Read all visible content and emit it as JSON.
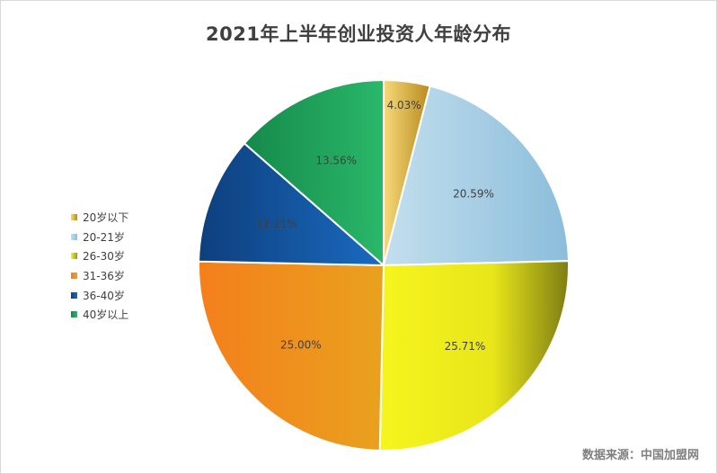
{
  "chart_data": {
    "type": "pie",
    "title": "2021年上半年创业投资人年龄分布",
    "categories": [
      "20岁以下",
      "20-21岁",
      "26-30岁",
      "31-36岁",
      "36-40岁",
      "40岁以上"
    ],
    "values": [
      4.03,
      20.59,
      25.71,
      25.0,
      11.11,
      13.56
    ],
    "labels": [
      "4.03%",
      "20.59%",
      "25.71%",
      "25.00%",
      "11.11%",
      "13.56%"
    ],
    "colors": [
      "#e8b84a",
      "#9ec9e2",
      "#e6e61a",
      "#f08a1c",
      "#1a5fa8",
      "#21a35c"
    ],
    "legend_position": "left"
  },
  "source": "数据来源：中国加盟网"
}
